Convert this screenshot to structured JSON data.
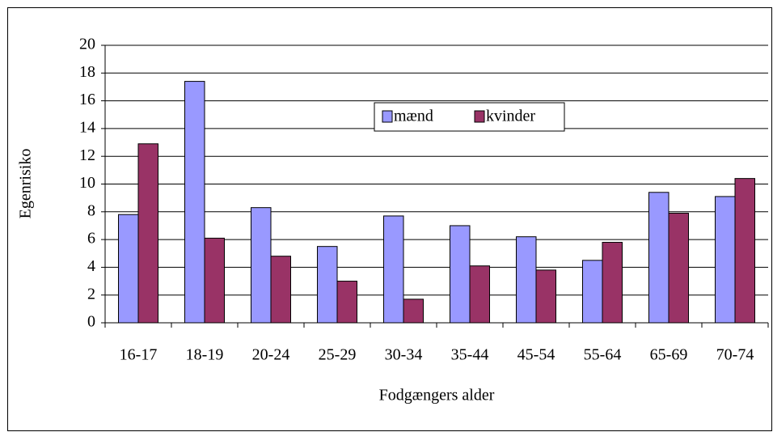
{
  "chart_data": {
    "type": "bar",
    "categories": [
      "16-17",
      "18-19",
      "20-24",
      "25-29",
      "30-34",
      "35-44",
      "45-54",
      "55-64",
      "65-69",
      "70-74"
    ],
    "series": [
      {
        "name": "mænd",
        "color": "#9999ff",
        "values": [
          7.8,
          17.4,
          8.3,
          5.5,
          7.7,
          7.0,
          6.2,
          4.5,
          9.4,
          9.1
        ]
      },
      {
        "name": "kvinder",
        "color": "#993366",
        "values": [
          12.9,
          6.1,
          4.8,
          3.0,
          1.7,
          4.1,
          3.8,
          5.8,
          7.9,
          10.4
        ]
      }
    ],
    "xlabel": "Fodgængers alder",
    "ylabel": "Egenrisiko",
    "ylim": [
      0,
      20
    ],
    "yticks": [
      0,
      2,
      4,
      6,
      8,
      10,
      12,
      14,
      16,
      18,
      20
    ],
    "grid": true
  }
}
